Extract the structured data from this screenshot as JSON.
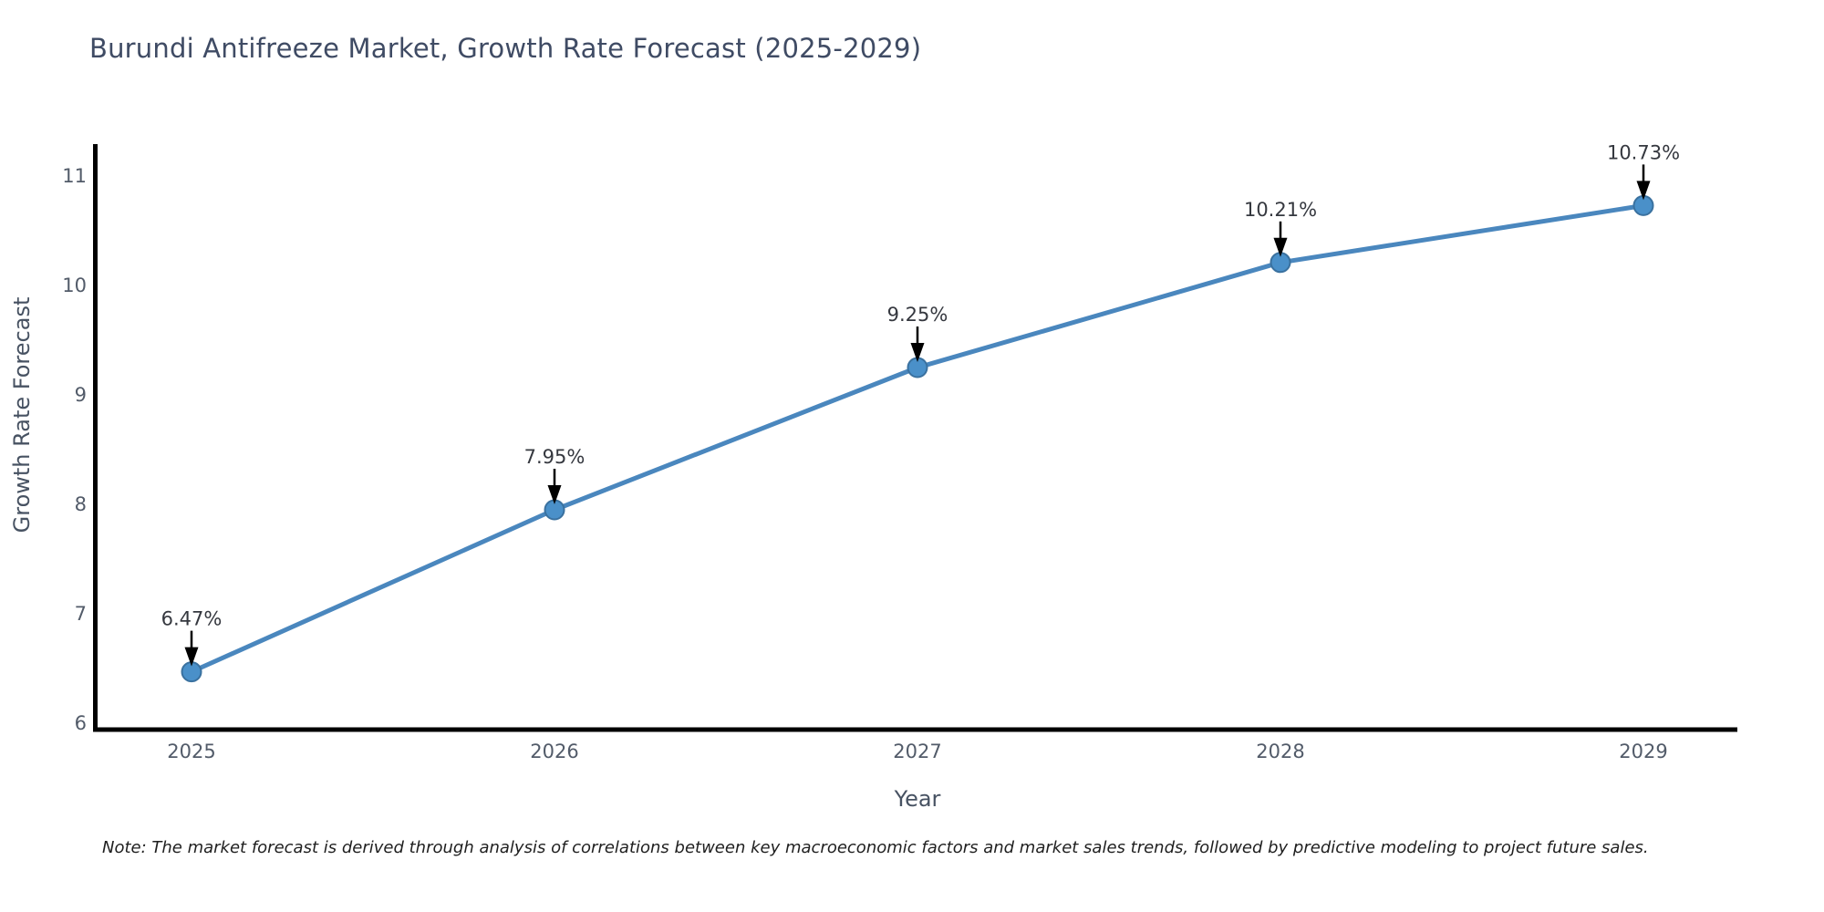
{
  "note": "Note: The market forecast is derived through analysis of correlations between key macroeconomic factors and market sales trends, followed by predictive modeling to project future sales.",
  "chart_data": {
    "type": "line",
    "title": "Burundi Antifreeze Market, Growth Rate Forecast (2025-2029)",
    "xlabel": "Year",
    "ylabel": "Growth Rate Forecast",
    "x": [
      2025,
      2026,
      2027,
      2028,
      2029
    ],
    "values": [
      6.47,
      7.95,
      9.25,
      10.21,
      10.73
    ],
    "annotations": [
      "6.47%",
      "7.95%",
      "9.25%",
      "10.21%",
      "10.73%"
    ],
    "x_tick_labels": [
      "2025",
      "2026",
      "2027",
      "2028",
      "2029"
    ],
    "y_ticks": [
      6,
      7,
      8,
      9,
      10,
      11
    ],
    "y_tick_labels": [
      "6",
      "7",
      "8",
      "9",
      "10",
      "11"
    ],
    "ylim": [
      6,
      11.35
    ],
    "grid": false,
    "legend": null,
    "colors": {
      "line": "#4a87be",
      "marker_fill": "#4a90c9",
      "marker_edge": "#3a719f",
      "arrow": "#000000",
      "annotation_text": "#35383f",
      "title_text": "#3f4b64",
      "tick_label": "#525b69",
      "axis_label": "#475262",
      "spine": "#000000",
      "note_text": "#1f1f1f"
    }
  }
}
